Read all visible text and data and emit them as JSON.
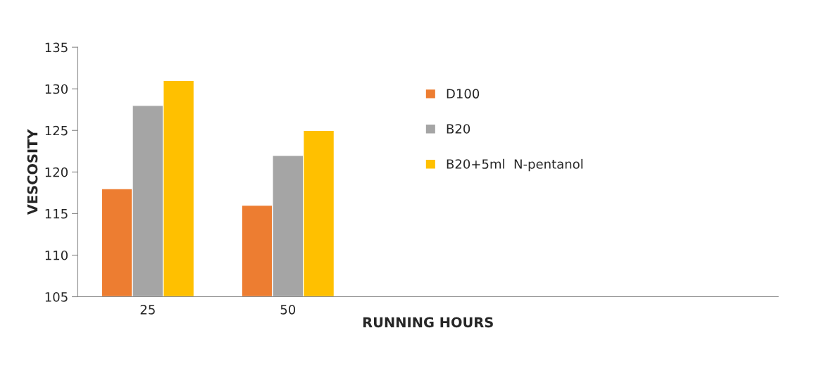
{
  "chart_data": {
    "type": "bar",
    "xlabel": "RUNNING HOURS",
    "ylabel": "VESCOSITY",
    "categories": [
      "25",
      "50",
      null,
      null,
      null
    ],
    "series": [
      {
        "name": "D100",
        "color": "#ed7d31",
        "values": [
          118,
          116,
          null,
          null,
          null
        ]
      },
      {
        "name": "B20",
        "color": "#a5a5a5",
        "values": [
          128,
          122,
          null,
          null,
          null
        ]
      },
      {
        "name": "B20+5ml  N-pentanol",
        "color": "#ffc000",
        "values": [
          131,
          125,
          null,
          null,
          null
        ]
      }
    ],
    "ylim": [
      105,
      135
    ],
    "yticks": [
      105,
      110,
      115,
      120,
      125,
      130,
      135
    ],
    "grid": false,
    "legend": "top"
  }
}
